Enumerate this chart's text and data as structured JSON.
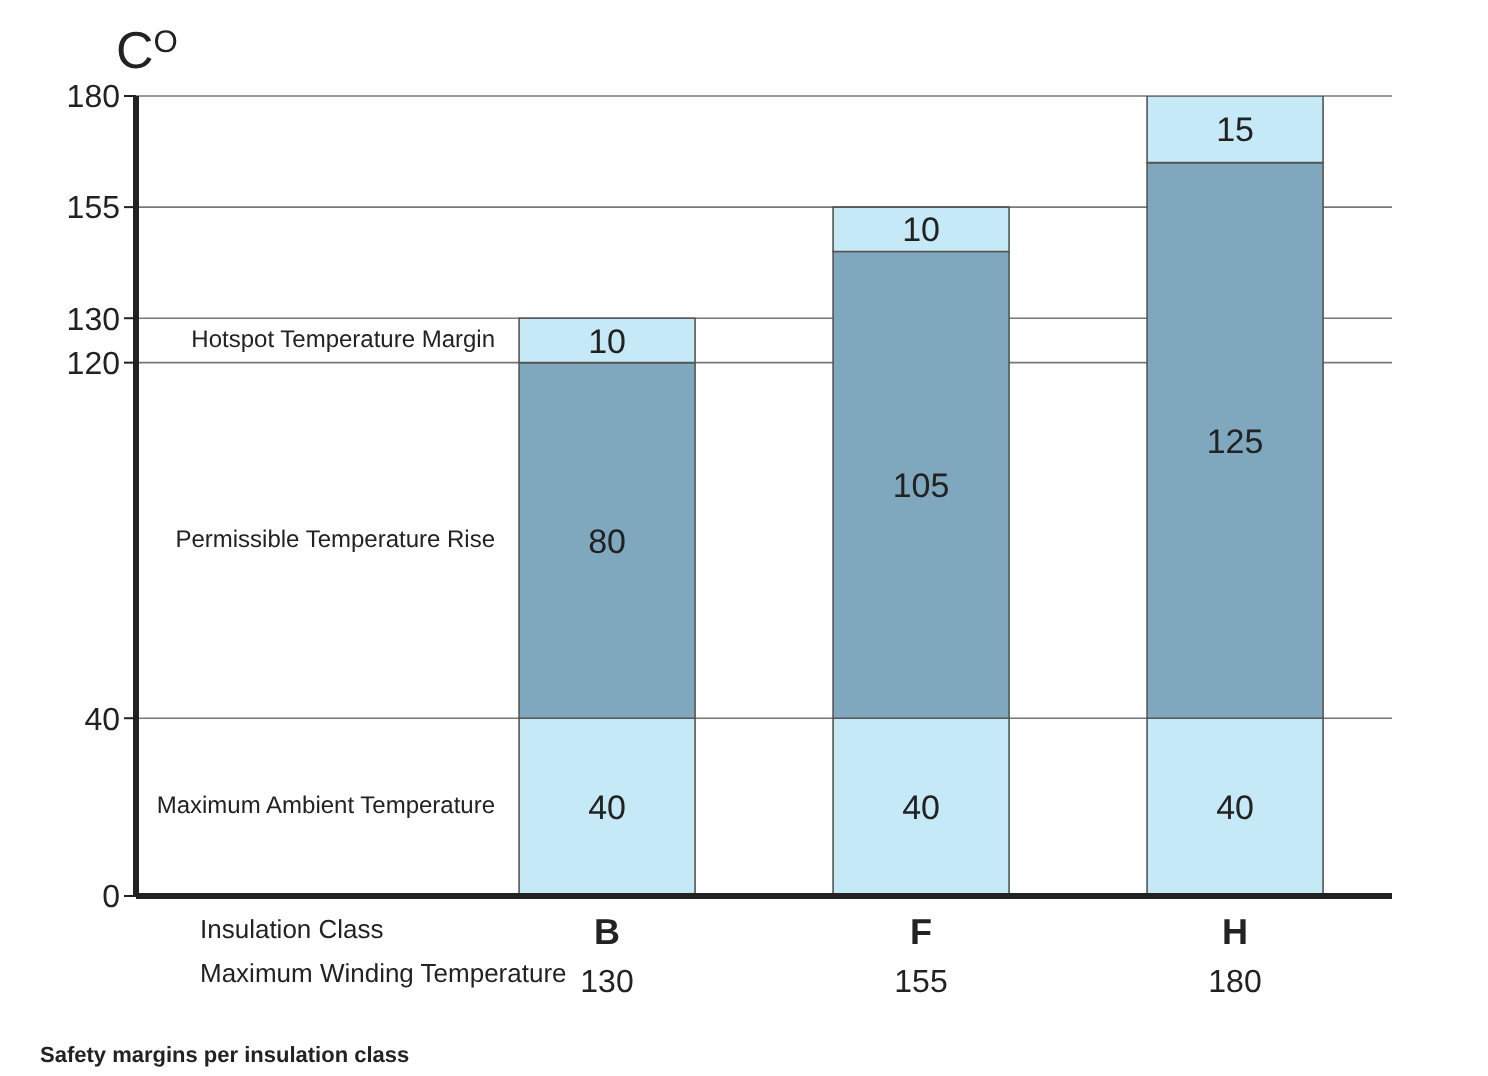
{
  "chart_data": {
    "type": "bar",
    "stacked": true,
    "title": "Safety margins per insulation class",
    "ylabel": "C$^{O}$",
    "xlabel": "Insulation Class",
    "annotations": [
      "Maximum Winding Temperature"
    ],
    "categories": [
      null,
      "B",
      "F",
      "H"
    ],
    "series": [
      {
        "name": "Maximum Ambient Temperature",
        "color": "#c6e9f8",
        "values": [
          null,
          40,
          40,
          40
        ]
      },
      {
        "name": "Permissible Temperature Rise",
        "color": "#7fa8be",
        "values": [
          null,
          80,
          105,
          125
        ]
      },
      {
        "name": "Hotspot Temperature Margin",
        "color": "#c6e9f8",
        "values": [
          null,
          10,
          10,
          15
        ]
      }
    ],
    "totals": [
      null,
      "130",
      "155",
      "180"
    ],
    "ylim": [
      0,
      180
    ],
    "yticks": [
      0,
      40,
      120,
      130,
      155,
      180
    ],
    "grid": "y",
    "legend": false,
    "data_labels": true
  }
}
